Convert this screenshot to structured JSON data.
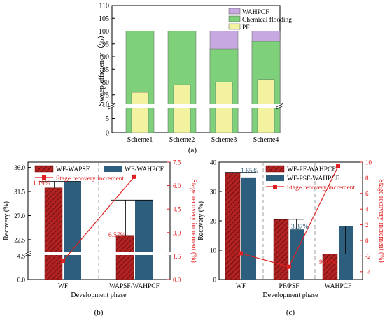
{
  "chart_data": [
    {
      "panel": "(a)",
      "type": "bar",
      "ylabel": "Sweep efficiency（%）",
      "xlabel": "",
      "categories": [
        "Scheme1",
        "Scheme2",
        "Scheme3",
        "Scheme4"
      ],
      "series": [
        {
          "name": "WAHPCF",
          "values": [
            null,
            null,
            100,
            100
          ],
          "color": "#c8a8e0"
        },
        {
          "name": "Chemical flooding",
          "values": [
            100,
            100,
            93,
            96
          ],
          "color": "#7fd07a"
        },
        {
          "name": "PF",
          "values": [
            76,
            79,
            80,
            81
          ],
          "color": "#f2f2a0"
        }
      ],
      "ylim_upper": [
        70,
        110
      ],
      "ylim_lower": [
        0,
        10
      ],
      "yticks_upper": [
        "110",
        "105",
        "100",
        "95",
        "90",
        "85",
        "80",
        "75"
      ],
      "yticks_lower": [
        "10",
        "5",
        "0"
      ],
      "legend": "top-right"
    },
    {
      "panel": "(b)",
      "type": "bar",
      "xlabel": "Development phase",
      "ylabel": "Recovery (%)",
      "y2label": "Stage recovery increment (%)",
      "categories": [
        "WF",
        "WAPSF/WAHPCF"
      ],
      "series": [
        {
          "name": "WF-WAPSF",
          "values": [
            32.2,
            23.3
          ],
          "color": "#b22222",
          "hatch": true
        },
        {
          "name": "WF-WAHPCF",
          "values": [
            33.4,
            29.9
          ],
          "color": "#2e5e7e"
        }
      ],
      "line": {
        "name": "Stage recovery increment",
        "values": [
          1.19,
          6.57
        ],
        "color": "#e02020"
      },
      "annotations": [
        "1.19%",
        "6.57%"
      ],
      "yticks_upper": [
        "36.0",
        "31.5",
        "27.0",
        "22.5"
      ],
      "yticks_lower": [
        "4.5",
        "0.0"
      ],
      "y2ticks": [
        "7.5",
        "6.0",
        "4.5",
        "3.0",
        "1.5",
        "0.0"
      ],
      "legend": "top"
    },
    {
      "panel": "(c)",
      "type": "bar",
      "xlabel": "Development phase",
      "ylabel": "Recovery (%)",
      "y2label": "Stage recovery increment (%)",
      "categories": [
        "WF",
        "PF/PSF",
        "WAHPCF"
      ],
      "series": [
        {
          "name": "WF-PF-WAHPCF",
          "values": [
            36.5,
            20.5,
            8.7
          ],
          "color": "#b22222",
          "hatch": true
        },
        {
          "name": "WF-PSF-WAHPCF",
          "values": [
            34.8,
            17.1,
            18.2
          ],
          "color": "#2e5e7e"
        }
      ],
      "line": {
        "name": "Stage recovery increment",
        "values": [
          -1.65,
          -3.37,
          9.46
        ],
        "color": "#e02020"
      },
      "annotations": [
        "1.65%",
        "3.37%",
        "9.46%"
      ],
      "yticks": [
        "40",
        "30",
        "20",
        "10",
        "0"
      ],
      "y2ticks": [
        "10",
        "8",
        "6",
        "4",
        "2",
        "0",
        "-2",
        "-4"
      ],
      "ylim": [
        0,
        40
      ],
      "y2lim": [
        -5,
        10
      ],
      "legend": "top-right"
    }
  ],
  "captions": {
    "a": "(a)",
    "b": "(b)",
    "c": "(c)"
  }
}
